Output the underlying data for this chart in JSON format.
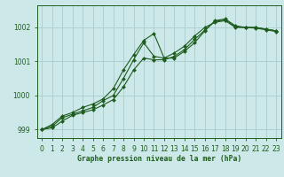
{
  "title": "Graphe pression niveau de la mer (hPa)",
  "background_color": "#cce8e8",
  "grid_color": "#aacccc",
  "line_color": "#1e5c1e",
  "marker_color": "#1e5c1e",
  "xlim": [
    -0.5,
    23.5
  ],
  "ylim": [
    998.75,
    1002.65
  ],
  "yticks": [
    999,
    1000,
    1001,
    1002
  ],
  "xticks": [
    0,
    1,
    2,
    3,
    4,
    5,
    6,
    7,
    8,
    9,
    10,
    11,
    12,
    13,
    14,
    15,
    16,
    17,
    18,
    19,
    20,
    21,
    22,
    23
  ],
  "series1_x": [
    0,
    1,
    2,
    3,
    4,
    5,
    6,
    7,
    8,
    9,
    10,
    11,
    12,
    13,
    14,
    15,
    16,
    17,
    18,
    19,
    20,
    21,
    22,
    23
  ],
  "series1_y": [
    999.0,
    999.1,
    999.35,
    999.45,
    999.55,
    999.65,
    999.85,
    1000.0,
    1000.5,
    1001.05,
    1001.55,
    1001.15,
    1001.1,
    1001.25,
    1001.45,
    1001.75,
    1002.0,
    1002.15,
    1002.2,
    1002.0,
    1002.0,
    1002.0,
    1001.95,
    1001.9
  ],
  "series2_x": [
    0,
    1,
    2,
    3,
    4,
    5,
    6,
    7,
    8,
    9,
    10,
    11,
    12,
    13,
    14,
    15,
    16,
    17,
    18,
    19,
    20,
    21,
    22,
    23
  ],
  "series2_y": [
    999.0,
    999.15,
    999.4,
    999.5,
    999.65,
    999.75,
    999.9,
    1000.2,
    1000.75,
    1001.2,
    1001.62,
    1001.82,
    1001.1,
    1001.1,
    1001.3,
    1001.55,
    1001.9,
    1002.2,
    1002.25,
    1002.05,
    1002.0,
    1002.0,
    1001.95,
    1001.9
  ],
  "series3_x": [
    0,
    1,
    2,
    3,
    4,
    5,
    6,
    7,
    8,
    9,
    10,
    11,
    12,
    13,
    14,
    15,
    16,
    17,
    18,
    19,
    20,
    21,
    22,
    23
  ],
  "series3_y": [
    999.0,
    999.05,
    999.25,
    999.42,
    999.5,
    999.58,
    999.72,
    999.88,
    1000.25,
    1000.75,
    1001.1,
    1001.05,
    1001.05,
    1001.15,
    1001.35,
    1001.65,
    1001.92,
    1002.18,
    1002.22,
    1002.02,
    1002.0,
    1001.98,
    1001.93,
    1001.88
  ]
}
